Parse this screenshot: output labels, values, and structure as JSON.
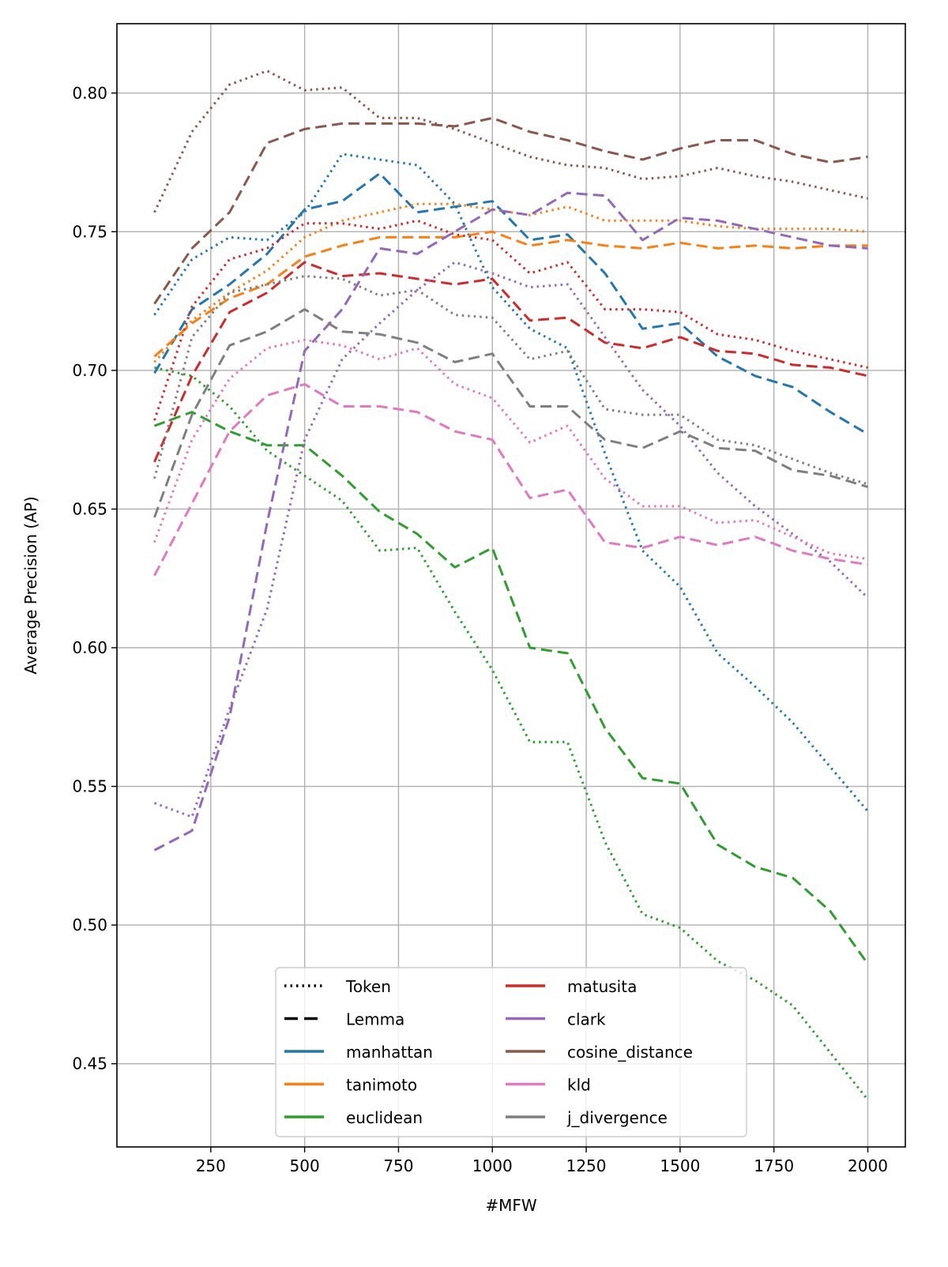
{
  "chart_data": {
    "type": "line",
    "title": "",
    "xlabel": "#MFW",
    "ylabel": "Average Precision (AP)",
    "xlim": [
      0,
      2100
    ],
    "ylim": [
      0.42,
      0.825
    ],
    "xticks": [
      250,
      500,
      750,
      1000,
      1250,
      1500,
      1750,
      2000
    ],
    "yticks": [
      "0.45",
      "0.50",
      "0.55",
      "0.60",
      "0.65",
      "0.70",
      "0.75",
      "0.80"
    ],
    "grid": true,
    "legend_placement": "lower center",
    "x": [
      100,
      200,
      300,
      400,
      500,
      600,
      700,
      800,
      900,
      1000,
      1100,
      1200,
      1300,
      1400,
      1500,
      1600,
      1700,
      1800,
      1900,
      2000
    ],
    "styles": [
      {
        "name": "Token",
        "dash": "dotted"
      },
      {
        "name": "Lemma",
        "dash": "dashed"
      }
    ],
    "series": [
      {
        "name": "manhattan",
        "color": "#1f77b4",
        "token": [
          0.72,
          0.74,
          0.748,
          0.747,
          0.757,
          0.778,
          0.776,
          0.774,
          0.76,
          0.73,
          0.715,
          0.708,
          0.67,
          0.635,
          0.622,
          0.598,
          0.586,
          0.573,
          0.557,
          0.541
        ],
        "lemma": [
          0.699,
          0.722,
          0.731,
          0.742,
          0.758,
          0.761,
          0.771,
          0.757,
          0.759,
          0.761,
          0.747,
          0.749,
          0.735,
          0.715,
          0.717,
          0.705,
          0.698,
          0.694,
          0.685,
          0.677
        ]
      },
      {
        "name": "tanimoto",
        "color": "#ff7f0e",
        "token": [
          0.703,
          0.718,
          0.728,
          0.736,
          0.748,
          0.754,
          0.757,
          0.76,
          0.76,
          0.758,
          0.756,
          0.759,
          0.754,
          0.754,
          0.754,
          0.752,
          0.751,
          0.751,
          0.751,
          0.75
        ],
        "lemma": [
          0.705,
          0.717,
          0.726,
          0.731,
          0.741,
          0.745,
          0.748,
          0.748,
          0.748,
          0.75,
          0.745,
          0.747,
          0.745,
          0.744,
          0.746,
          0.744,
          0.745,
          0.744,
          0.745,
          0.745
        ]
      },
      {
        "name": "euclidean",
        "color": "#2ca02c",
        "token": [
          0.701,
          0.698,
          0.687,
          0.671,
          0.662,
          0.653,
          0.635,
          0.636,
          0.613,
          0.592,
          0.566,
          0.566,
          0.53,
          0.504,
          0.499,
          0.487,
          0.48,
          0.471,
          0.454,
          0.437
        ],
        "lemma": [
          0.68,
          0.685,
          0.678,
          0.673,
          0.673,
          0.662,
          0.649,
          0.641,
          0.629,
          0.636,
          0.6,
          0.598,
          0.571,
          0.553,
          0.551,
          0.529,
          0.521,
          0.517,
          0.505,
          0.486
        ]
      },
      {
        "name": "matusita",
        "color": "#d62728",
        "token": [
          0.682,
          0.723,
          0.74,
          0.744,
          0.753,
          0.753,
          0.751,
          0.754,
          0.749,
          0.747,
          0.735,
          0.739,
          0.722,
          0.722,
          0.721,
          0.713,
          0.711,
          0.707,
          0.704,
          0.701
        ],
        "lemma": [
          0.667,
          0.698,
          0.721,
          0.728,
          0.739,
          0.734,
          0.735,
          0.733,
          0.731,
          0.733,
          0.718,
          0.719,
          0.71,
          0.708,
          0.712,
          0.707,
          0.706,
          0.702,
          0.701,
          0.698
        ]
      },
      {
        "name": "clark",
        "color": "#9467bd",
        "token": [
          0.544,
          0.539,
          0.578,
          0.614,
          0.675,
          0.704,
          0.717,
          0.729,
          0.739,
          0.735,
          0.73,
          0.731,
          0.712,
          0.693,
          0.68,
          0.663,
          0.651,
          0.641,
          0.631,
          0.618
        ],
        "lemma": [
          0.527,
          0.534,
          0.575,
          0.645,
          0.707,
          0.722,
          0.744,
          0.742,
          0.75,
          0.758,
          0.756,
          0.764,
          0.763,
          0.747,
          0.755,
          0.754,
          0.751,
          0.748,
          0.745,
          0.744
        ]
      },
      {
        "name": "cosine_distance",
        "color": "#8c564b",
        "token": [
          0.757,
          0.786,
          0.803,
          0.808,
          0.801,
          0.802,
          0.791,
          0.791,
          0.787,
          0.782,
          0.777,
          0.774,
          0.773,
          0.769,
          0.77,
          0.773,
          0.77,
          0.768,
          0.765,
          0.762
        ],
        "lemma": [
          0.724,
          0.744,
          0.757,
          0.782,
          0.787,
          0.789,
          0.789,
          0.789,
          0.788,
          0.791,
          0.786,
          0.783,
          0.779,
          0.776,
          0.78,
          0.783,
          0.783,
          0.778,
          0.775,
          0.777
        ]
      },
      {
        "name": "kld",
        "color": "#e377c2",
        "token": [
          0.638,
          0.675,
          0.697,
          0.708,
          0.711,
          0.709,
          0.704,
          0.708,
          0.695,
          0.69,
          0.674,
          0.68,
          0.661,
          0.651,
          0.651,
          0.645,
          0.646,
          0.64,
          0.634,
          0.632
        ],
        "lemma": [
          0.626,
          0.652,
          0.678,
          0.691,
          0.695,
          0.687,
          0.687,
          0.685,
          0.678,
          0.675,
          0.654,
          0.657,
          0.638,
          0.636,
          0.64,
          0.637,
          0.64,
          0.635,
          0.632,
          0.63
        ]
      },
      {
        "name": "j_divergence",
        "color": "#7f7f7f",
        "token": [
          0.661,
          0.712,
          0.728,
          0.731,
          0.734,
          0.733,
          0.727,
          0.729,
          0.72,
          0.719,
          0.704,
          0.707,
          0.686,
          0.684,
          0.684,
          0.675,
          0.673,
          0.668,
          0.663,
          0.659
        ],
        "lemma": [
          0.647,
          0.684,
          0.709,
          0.714,
          0.722,
          0.714,
          0.713,
          0.71,
          0.703,
          0.706,
          0.687,
          0.687,
          0.675,
          0.672,
          0.678,
          0.672,
          0.671,
          0.664,
          0.662,
          0.658
        ]
      }
    ],
    "legend_entries": [
      "Token",
      "Lemma",
      "manhattan",
      "tanimoto",
      "euclidean",
      "matusita",
      "clark",
      "cosine_distance",
      "kld",
      "j_divergence"
    ]
  }
}
